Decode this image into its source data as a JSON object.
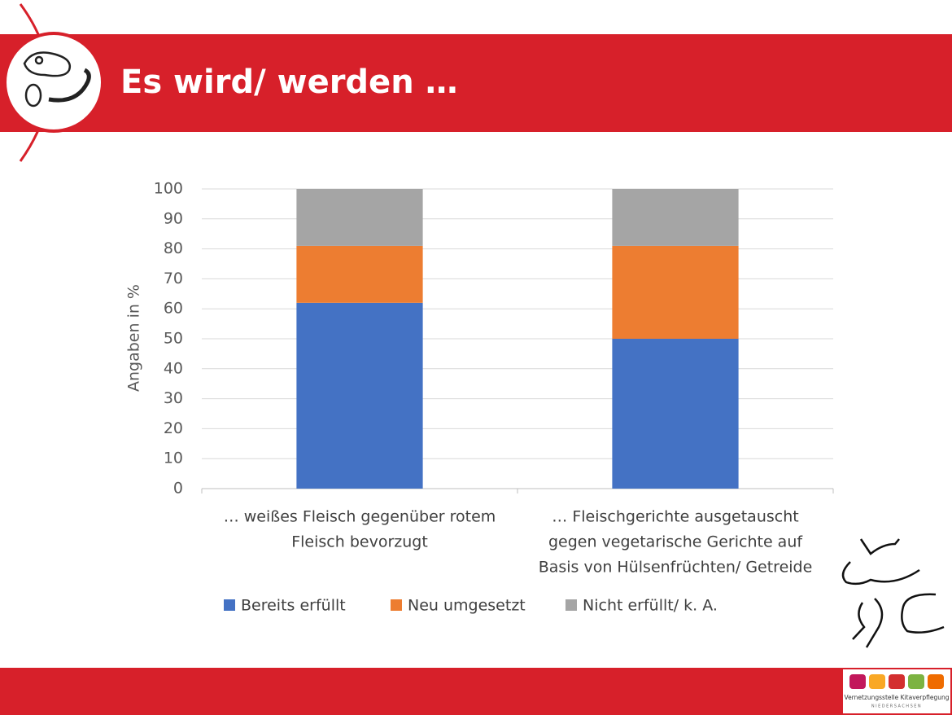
{
  "header": {
    "title": "Es wird/ werden …"
  },
  "logo": {
    "line1": "Vernetzungsstelle Kitaverpflegung",
    "line2": "NIEDERSACHSEN"
  },
  "chart_data": {
    "type": "bar",
    "stacked": true,
    "y_label": "Angaben in %",
    "categories": [
      [
        "… weißes Fleisch gegenüber rotem",
        "Fleisch bevorzugt"
      ],
      [
        "… Fleischgerichte ausgetauscht",
        "gegen vegetarische Gerichte auf",
        "Basis von Hülsenfrüchten/ Getreide"
      ]
    ],
    "series": [
      {
        "name": "Bereits erfüllt",
        "color": "#4472c4",
        "values": [
          62,
          50
        ]
      },
      {
        "name": "Neu umgesetzt",
        "color": "#ed7d31",
        "values": [
          19,
          31
        ]
      },
      {
        "name": "Nicht erfüllt/ k. A.",
        "color": "#a5a5a5",
        "values": [
          19,
          19
        ]
      }
    ],
    "ylim": [
      0,
      100
    ],
    "yticks": [
      0,
      10,
      20,
      30,
      40,
      50,
      60,
      70,
      80,
      90,
      100
    ],
    "grid": true,
    "legend": "bottom"
  }
}
